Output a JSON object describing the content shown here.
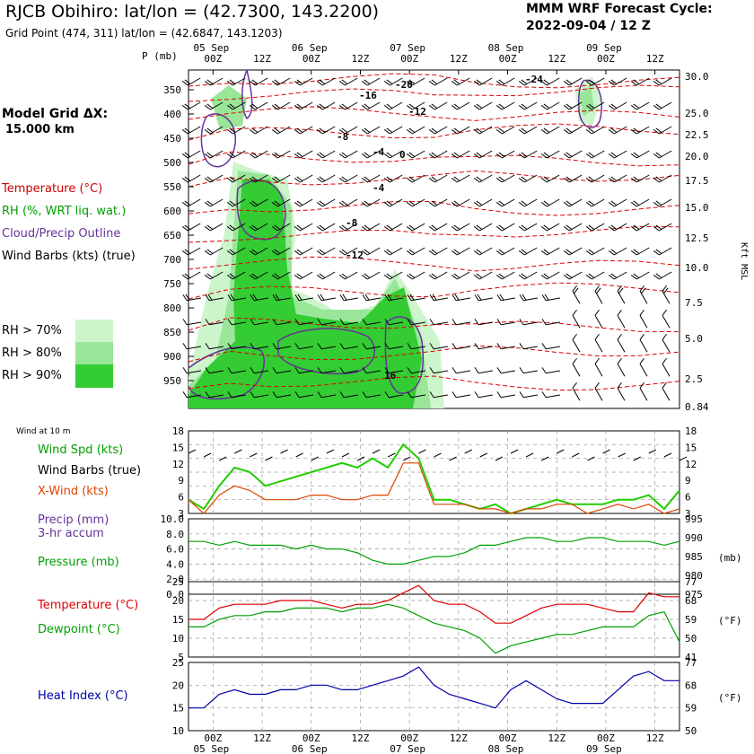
{
  "header": {
    "title": "RJCB Obihiro:  lat/lon = (42.7300, 143.2200)",
    "subtitle": "Grid Point (474, 311) lat/lon = (42.6847, 143.1203)",
    "cycle_label": "MMM WRF Forecast Cycle:",
    "cycle_value": "2022-09-04 / 12  Z",
    "grid_label": "Model Grid ΔX:",
    "grid_value": "15.000 km"
  },
  "legend_upper": [
    {
      "text": "Temperature (°C)",
      "color": "#cc0000"
    },
    {
      "text": "RH (%, WRT liq. wat.)",
      "color": "#00a000"
    },
    {
      "text": "Cloud/Precip Outline",
      "color": "#663399"
    },
    {
      "text": "Wind Barbs (kts) (true)",
      "color": "#000000"
    }
  ],
  "rh_legend": [
    {
      "text": "RH > 70%",
      "color": "#ccf5cc"
    },
    {
      "text": "RH > 80%",
      "color": "#99e699"
    },
    {
      "text": "RH > 90%",
      "color": "#33cc33"
    }
  ],
  "legend_wind": {
    "heading": "Wind at 10 m",
    "spd": "Wind Spd (kts)",
    "barbs": "Wind Barbs (true)",
    "xwind": "X-Wind (kts)"
  },
  "legend_precip": {
    "line1": "Precip (mm)",
    "line2": "3-hr accum",
    "pressure": "Pressure (mb)"
  },
  "legend_temp": {
    "temp": "Temperature (°C)",
    "dew": "Dewpoint (°C)"
  },
  "legend_heat": {
    "heat": "Heat Index (°C)"
  },
  "colors": {
    "temp": "#dd0000",
    "rh": "#00a000",
    "cloud": "#663399",
    "xwind": "#dd4400",
    "heat": "#0000aa",
    "spd": "#22cc00"
  },
  "time_axis": {
    "ticks": [
      "00Z",
      "12Z",
      "00Z",
      "12Z",
      "00Z",
      "12Z",
      "00Z",
      "12Z",
      "00Z",
      "12Z"
    ],
    "days": [
      "05 Sep",
      "06 Sep",
      "07 Sep",
      "08 Sep",
      "09 Sep"
    ]
  },
  "chart_data": [
    {
      "type": "heatmap",
      "name": "cross-section",
      "ylabel_left": "P (mb)",
      "ylabel_right": "Kft MSL",
      "pressure_ticks": [
        "350",
        "400",
        "450",
        "500",
        "550",
        "600",
        "650",
        "700",
        "750",
        "800",
        "850",
        "900",
        "950"
      ],
      "kft_ticks": [
        "30.0",
        "25.0",
        "22.5",
        "20.0",
        "17.5",
        "15.0",
        "12.5",
        "10.0",
        "7.5",
        "5.0",
        "2.5",
        "0.84"
      ],
      "temp_labels": [
        "-20",
        "-24",
        "-16",
        "-12",
        "-8",
        "-4",
        "0",
        "-4",
        "-8",
        "-12",
        "16"
      ]
    },
    {
      "type": "line",
      "name": "wind",
      "heading": "Wind at 10 m",
      "y_ticks": [
        "18",
        "15",
        "12",
        "9",
        "6",
        "3"
      ],
      "series": [
        {
          "name": "Wind Spd (kts)",
          "values": [
            3,
            1,
            6,
            10,
            9,
            6,
            7,
            8,
            9,
            10,
            11,
            10,
            12,
            10,
            15,
            12,
            3,
            3,
            2,
            1,
            2,
            0,
            1,
            2,
            3,
            2,
            2,
            2,
            3,
            3,
            4,
            1,
            5
          ]
        },
        {
          "name": "X-Wind (kts)",
          "values": [
            3,
            0,
            4,
            6,
            5,
            3,
            3,
            3,
            4,
            4,
            3,
            3,
            4,
            4,
            11,
            11,
            2,
            2,
            2,
            1,
            1,
            0,
            1,
            1,
            2,
            2,
            0,
            1,
            2,
            1,
            2,
            0,
            1
          ]
        }
      ]
    },
    {
      "type": "line",
      "name": "pressure",
      "y_left_ticks": [
        "10.0",
        "8.0",
        "6.0",
        "4.0",
        "2.0",
        "0.0"
      ],
      "y_right_ticks": [
        "995",
        "990",
        "985",
        "980",
        "975"
      ],
      "y_right_label": "(mb)",
      "series": [
        {
          "name": "Pressure (mb)",
          "values": [
            989,
            989,
            988,
            989,
            988,
            988,
            988,
            987,
            988,
            987,
            987,
            986,
            984,
            983,
            983,
            984,
            985,
            985,
            986,
            988,
            988,
            989,
            990,
            990,
            989,
            989,
            990,
            990,
            989,
            989,
            989,
            988,
            989
          ]
        }
      ]
    },
    {
      "type": "line",
      "name": "temperature",
      "y_left_ticks": [
        "25",
        "20",
        "15",
        "10",
        "5"
      ],
      "y_right_ticks": [
        "77",
        "68",
        "59",
        "50",
        "41"
      ],
      "y_right_label": "(°F)",
      "series": [
        {
          "name": "Temperature (°C)",
          "values": [
            15,
            15,
            18,
            19,
            19,
            19,
            20,
            20,
            20,
            19,
            18,
            19,
            19,
            20,
            22,
            24,
            20,
            19,
            19,
            17,
            14,
            14,
            16,
            18,
            19,
            19,
            19,
            18,
            17,
            17,
            22,
            21,
            21
          ]
        },
        {
          "name": "Dewpoint (°C)",
          "values": [
            13,
            13,
            15,
            16,
            16,
            17,
            17,
            18,
            18,
            18,
            17,
            18,
            18,
            19,
            18,
            16,
            14,
            13,
            12,
            10,
            6,
            8,
            9,
            10,
            11,
            11,
            12,
            13,
            13,
            13,
            16,
            17,
            9
          ]
        }
      ]
    },
    {
      "type": "line",
      "name": "heat-index",
      "y_left_ticks": [
        "25",
        "20",
        "15",
        "10"
      ],
      "y_right_ticks": [
        "77",
        "68",
        "59",
        "50"
      ],
      "y_right_label": "(°F)",
      "series": [
        {
          "name": "Heat Index (°C)",
          "values": [
            15,
            15,
            18,
            19,
            18,
            18,
            19,
            19,
            20,
            20,
            19,
            19,
            20,
            21,
            22,
            24,
            20,
            18,
            17,
            16,
            15,
            19,
            21,
            19,
            17,
            16,
            16,
            16,
            19,
            22,
            23,
            21,
            21
          ]
        }
      ]
    }
  ]
}
